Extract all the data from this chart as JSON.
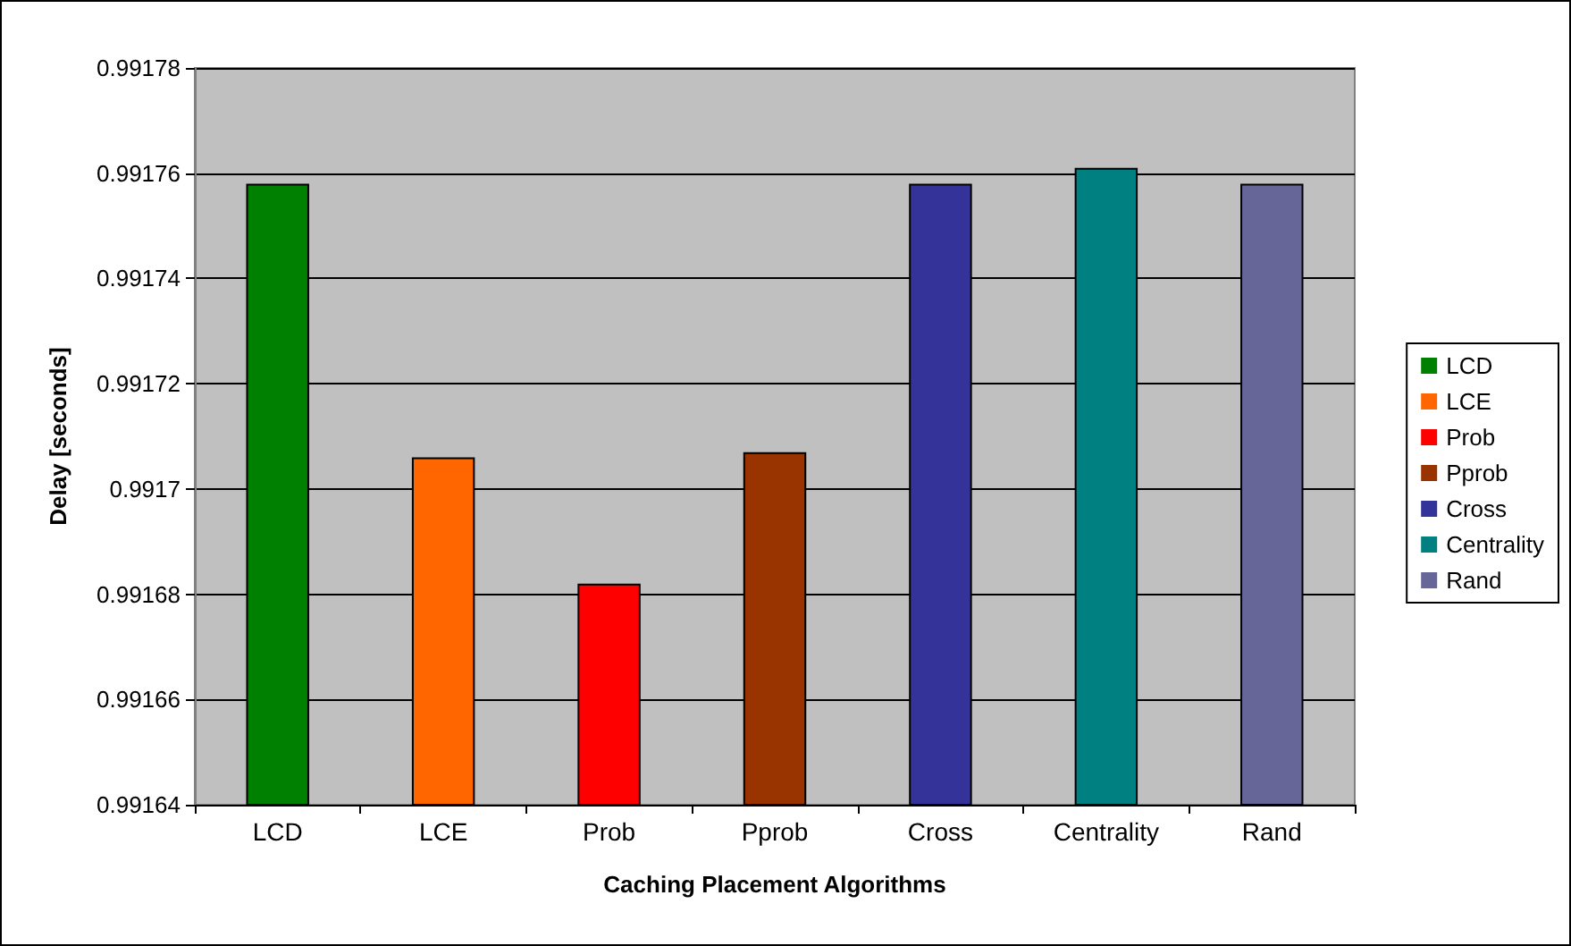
{
  "chart_data": {
    "type": "bar",
    "xlabel": "Caching Placement Algorithms",
    "ylabel": "Delay [seconds]",
    "categories": [
      "LCD",
      "LCE",
      "Prob",
      "Pprob",
      "Cross",
      "Centrality",
      "Rand"
    ],
    "series": [
      {
        "name": "LCD",
        "color": "#008000",
        "values": [
          0.991758,
          null,
          null,
          null,
          null,
          null,
          null
        ]
      },
      {
        "name": "LCE",
        "color": "#ff6600",
        "values": [
          null,
          0.991706,
          null,
          null,
          null,
          null,
          null
        ]
      },
      {
        "name": "Prob",
        "color": "#ff0000",
        "values": [
          null,
          null,
          0.991682,
          null,
          null,
          null,
          null
        ]
      },
      {
        "name": "Pprob",
        "color": "#993300",
        "values": [
          null,
          null,
          null,
          0.991707,
          null,
          null,
          null
        ]
      },
      {
        "name": "Cross",
        "color": "#333399",
        "values": [
          null,
          null,
          null,
          null,
          0.991758,
          null,
          null
        ]
      },
      {
        "name": "Centrality",
        "color": "#008080",
        "values": [
          null,
          null,
          null,
          null,
          null,
          0.991761,
          null
        ]
      },
      {
        "name": "Rand",
        "color": "#666699",
        "values": [
          null,
          null,
          null,
          null,
          null,
          null,
          0.991758
        ]
      }
    ],
    "stacked": true,
    "ylim": [
      0.99164,
      0.99178
    ],
    "yticks": [
      0.99164,
      0.99166,
      0.99168,
      0.9917,
      0.99172,
      0.99174,
      0.99176,
      0.99178
    ],
    "grid": "y",
    "legend": "right"
  }
}
